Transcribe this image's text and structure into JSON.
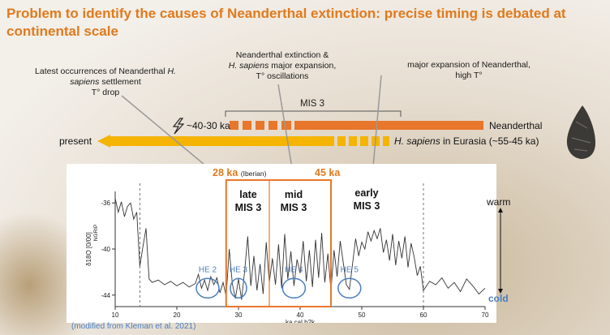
{
  "title": "Problem to identify the causes of Neanderthal extinction: precise timing is debated at continental scale",
  "annotations": {
    "latest_line1_a": "Latest occurrences of Neanderthal",
    "latest_line1_b": "H.",
    "latest_line2_a": "sapiens",
    "latest_line2_b": "settlement",
    "latest_line3": "T° drop",
    "extinction_line1": "Neanderthal extinction &",
    "extinction_line2_a": "H. sapiens",
    "extinction_line2_b": "major expansion,",
    "extinction_line3": "T° oscillations",
    "major_line1": "major expansion of Neanderthal,",
    "major_line2": "high T°"
  },
  "timeline": {
    "mis3_label": "MIS 3",
    "age_label": "~40-30 ka",
    "neanderthal_label": "Neanderthal",
    "present_label": "present",
    "sapiens_label_italic": "H. sapiens",
    "sapiens_label_rest": "in Eurasia (~55-45 ka)",
    "neanderthal_color": "#e8762b",
    "sapiens_color": "#f4b400"
  },
  "chart_markers": {
    "ka28": "28 ka",
    "ka28_note": "(Iberian)",
    "ka45": "45 ka",
    "late": [
      "late",
      "MIS 3"
    ],
    "mid": [
      "mid",
      "MIS 3"
    ],
    "early": [
      "early",
      "MIS 3"
    ],
    "warm": "warm",
    "cold": "cold"
  },
  "credit": "(modified from Kleman et al. 2021)",
  "chart_data": {
    "type": "line",
    "xlabel": "ka cal b2k",
    "ylabel_top": "NGRIP",
    "ylabel": "δ18O [0/00]",
    "xlim": [
      10,
      70
    ],
    "ylim": [
      -45,
      -35
    ],
    "xticks": [
      10,
      20,
      30,
      40,
      50,
      60,
      70
    ],
    "yticks": [
      -36,
      -40,
      -44
    ],
    "dashed_lines_x": [
      14,
      60
    ],
    "late_mis3_box": [
      28,
      35
    ],
    "mid_mis3_box": [
      35,
      45
    ],
    "heinrich_events": [
      {
        "label": "HE 2",
        "x": 25
      },
      {
        "label": "HE 3",
        "x": 30
      },
      {
        "label": "HE 4",
        "x": 39
      },
      {
        "label": "HE 5",
        "x": 48
      }
    ],
    "series": [
      {
        "x": [
          10,
          10.5,
          11,
          11.5,
          12,
          12.5,
          13,
          13.5,
          14,
          14.5,
          15,
          15.5,
          16,
          17,
          18,
          19,
          20,
          21,
          22,
          23,
          23.5,
          24,
          24.5,
          25,
          25.5,
          26,
          26.5,
          27,
          27.5,
          28,
          28.5,
          29,
          29.5,
          30,
          30.5,
          31,
          31.5,
          32,
          32.5,
          33,
          33.5,
          34,
          34.5,
          35,
          35.5,
          36,
          36.5,
          37,
          37.5,
          38,
          38.5,
          39,
          39.5,
          40,
          40.5,
          41,
          41.5,
          42,
          42.5,
          43,
          43.5,
          44,
          44.5,
          45,
          45.5,
          46,
          46.5,
          47,
          47.5,
          48,
          48.5,
          49,
          49.5,
          50,
          50.5,
          51,
          51.5,
          52,
          52.5,
          53,
          53.5,
          54,
          54.5,
          55,
          55.5,
          56,
          56.5,
          57,
          57.5,
          58,
          58.5,
          59,
          59.5,
          60,
          61,
          62,
          63,
          64,
          65,
          66,
          67,
          68,
          69,
          70
        ],
        "y": [
          -35.6,
          -36.8,
          -35.9,
          -37.2,
          -36.3,
          -36.0,
          -37.4,
          -36.8,
          -41.5,
          -39.8,
          -38.2,
          -42.6,
          -42.9,
          -42.7,
          -43.1,
          -42.8,
          -43.2,
          -42.9,
          -43.3,
          -43.0,
          -42.2,
          -43.4,
          -42.7,
          -43.6,
          -42.4,
          -43.1,
          -42.5,
          -43.8,
          -42.9,
          -44.1,
          -40.0,
          -43.0,
          -44.3,
          -42.6,
          -44.4,
          -41.9,
          -38.9,
          -43.2,
          -40.6,
          -43.6,
          -41.3,
          -43.9,
          -39.4,
          -42.9,
          -40.8,
          -43.1,
          -39.6,
          -43.4,
          -38.7,
          -42.6,
          -40.2,
          -43.2,
          -40.9,
          -42.1,
          -39.3,
          -42.8,
          -40.1,
          -43.3,
          -39.2,
          -42.5,
          -38.6,
          -42.9,
          -40.4,
          -43.6,
          -40.1,
          -42.4,
          -39.3,
          -41.2,
          -43.1,
          -43.5,
          -41.3,
          -39.1,
          -40.6,
          -39.4,
          -40.0,
          -38.5,
          -39.3,
          -38.4,
          -39.1,
          -38.2,
          -40.3,
          -39.2,
          -41.0,
          -38.7,
          -41.4,
          -39.3,
          -40.8,
          -38.9,
          -41.6,
          -39.5,
          -40.7,
          -42.3,
          -41.5,
          -43.6,
          -42.8,
          -43.1,
          -42.5,
          -43.4,
          -42.9,
          -43.7,
          -42.6,
          -43.2,
          -43.9,
          -43.4
        ]
      }
    ]
  }
}
